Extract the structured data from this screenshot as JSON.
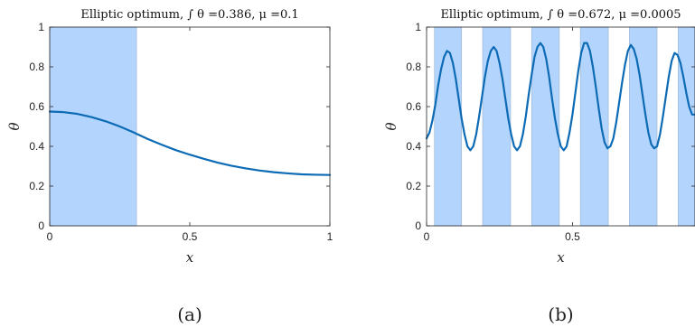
{
  "chart_data": [
    {
      "type": "line",
      "panel_label": "(a)",
      "title": "Elliptic optimum, ∫ θ =0.386, μ =0.1",
      "xlabel": "x",
      "ylabel": "θ",
      "xlim": [
        0,
        1
      ],
      "ylim": [
        0,
        1
      ],
      "xticks": [
        0,
        0.5,
        1
      ],
      "xtick_labels": [
        "0",
        "0.5",
        "1"
      ],
      "yticks": [
        0,
        0.2,
        0.4,
        0.6,
        0.8,
        1
      ],
      "ytick_labels": [
        "0",
        "0.2",
        "0.4",
        "0.6",
        "0.8",
        "1"
      ],
      "grid": false,
      "shaded_regions": [
        [
          0,
          0.31
        ]
      ],
      "series": [
        {
          "x": [
            0,
            0.05,
            0.1,
            0.15,
            0.2,
            0.25,
            0.3,
            0.31,
            0.35,
            0.4,
            0.45,
            0.5,
            0.55,
            0.6,
            0.65,
            0.7,
            0.75,
            0.8,
            0.85,
            0.9,
            0.95,
            1.0
          ],
          "y": [
            0.575,
            0.572,
            0.563,
            0.547,
            0.526,
            0.5,
            0.47,
            0.463,
            0.437,
            0.408,
            0.381,
            0.358,
            0.337,
            0.318,
            0.302,
            0.289,
            0.278,
            0.27,
            0.264,
            0.259,
            0.257,
            0.256
          ]
        }
      ]
    },
    {
      "type": "line",
      "panel_label": "(b)",
      "title": "Elliptic optimum, ∫ θ =0.672, μ =0.0005",
      "xlabel": "x",
      "ylabel": "θ",
      "xlim": [
        0,
        0.92
      ],
      "ylim": [
        0,
        1
      ],
      "xticks": [
        0,
        0.5
      ],
      "xtick_labels": [
        "0",
        "0.5"
      ],
      "yticks": [
        0,
        0.2,
        0.4,
        0.6,
        0.8,
        1
      ],
      "ytick_labels": [
        "0",
        "0.2",
        "0.4",
        "0.6",
        "0.8",
        "1"
      ],
      "grid": false,
      "shaded_regions": [
        [
          0.027,
          0.12
        ],
        [
          0.192,
          0.288
        ],
        [
          0.36,
          0.455
        ],
        [
          0.527,
          0.623
        ],
        [
          0.695,
          0.79
        ],
        [
          0.862,
          0.92
        ]
      ],
      "series": [
        {
          "x": [
            0.0,
            0.01,
            0.02,
            0.03,
            0.04,
            0.05,
            0.06,
            0.07,
            0.08,
            0.09,
            0.1,
            0.11,
            0.12,
            0.13,
            0.14,
            0.15,
            0.16,
            0.17,
            0.18,
            0.19,
            0.2,
            0.21,
            0.22,
            0.23,
            0.24,
            0.25,
            0.26,
            0.27,
            0.28,
            0.29,
            0.3,
            0.31,
            0.32,
            0.33,
            0.34,
            0.35,
            0.36,
            0.37,
            0.38,
            0.39,
            0.4,
            0.41,
            0.42,
            0.43,
            0.44,
            0.45,
            0.46,
            0.47,
            0.48,
            0.49,
            0.5,
            0.51,
            0.52,
            0.53,
            0.54,
            0.55,
            0.56,
            0.57,
            0.58,
            0.59,
            0.6,
            0.61,
            0.62,
            0.63,
            0.64,
            0.65,
            0.66,
            0.67,
            0.68,
            0.69,
            0.7,
            0.71,
            0.72,
            0.73,
            0.74,
            0.75,
            0.76,
            0.77,
            0.78,
            0.79,
            0.8,
            0.81,
            0.82,
            0.83,
            0.84,
            0.85,
            0.86,
            0.87,
            0.88,
            0.89,
            0.9,
            0.91,
            0.92
          ],
          "y": [
            0.44,
            0.47,
            0.53,
            0.61,
            0.71,
            0.79,
            0.85,
            0.88,
            0.87,
            0.82,
            0.74,
            0.64,
            0.54,
            0.46,
            0.4,
            0.38,
            0.4,
            0.46,
            0.55,
            0.65,
            0.75,
            0.83,
            0.88,
            0.9,
            0.88,
            0.82,
            0.74,
            0.64,
            0.54,
            0.46,
            0.4,
            0.38,
            0.4,
            0.46,
            0.55,
            0.66,
            0.76,
            0.85,
            0.9,
            0.92,
            0.9,
            0.84,
            0.75,
            0.64,
            0.54,
            0.46,
            0.4,
            0.38,
            0.4,
            0.47,
            0.56,
            0.67,
            0.78,
            0.87,
            0.92,
            0.92,
            0.88,
            0.8,
            0.7,
            0.59,
            0.49,
            0.42,
            0.39,
            0.4,
            0.44,
            0.52,
            0.62,
            0.72,
            0.81,
            0.88,
            0.91,
            0.89,
            0.84,
            0.76,
            0.66,
            0.56,
            0.47,
            0.41,
            0.39,
            0.4,
            0.46,
            0.55,
            0.65,
            0.75,
            0.83,
            0.87,
            0.86,
            0.82,
            0.75,
            0.67,
            0.6,
            0.56,
            0.56
          ]
        }
      ]
    }
  ]
}
